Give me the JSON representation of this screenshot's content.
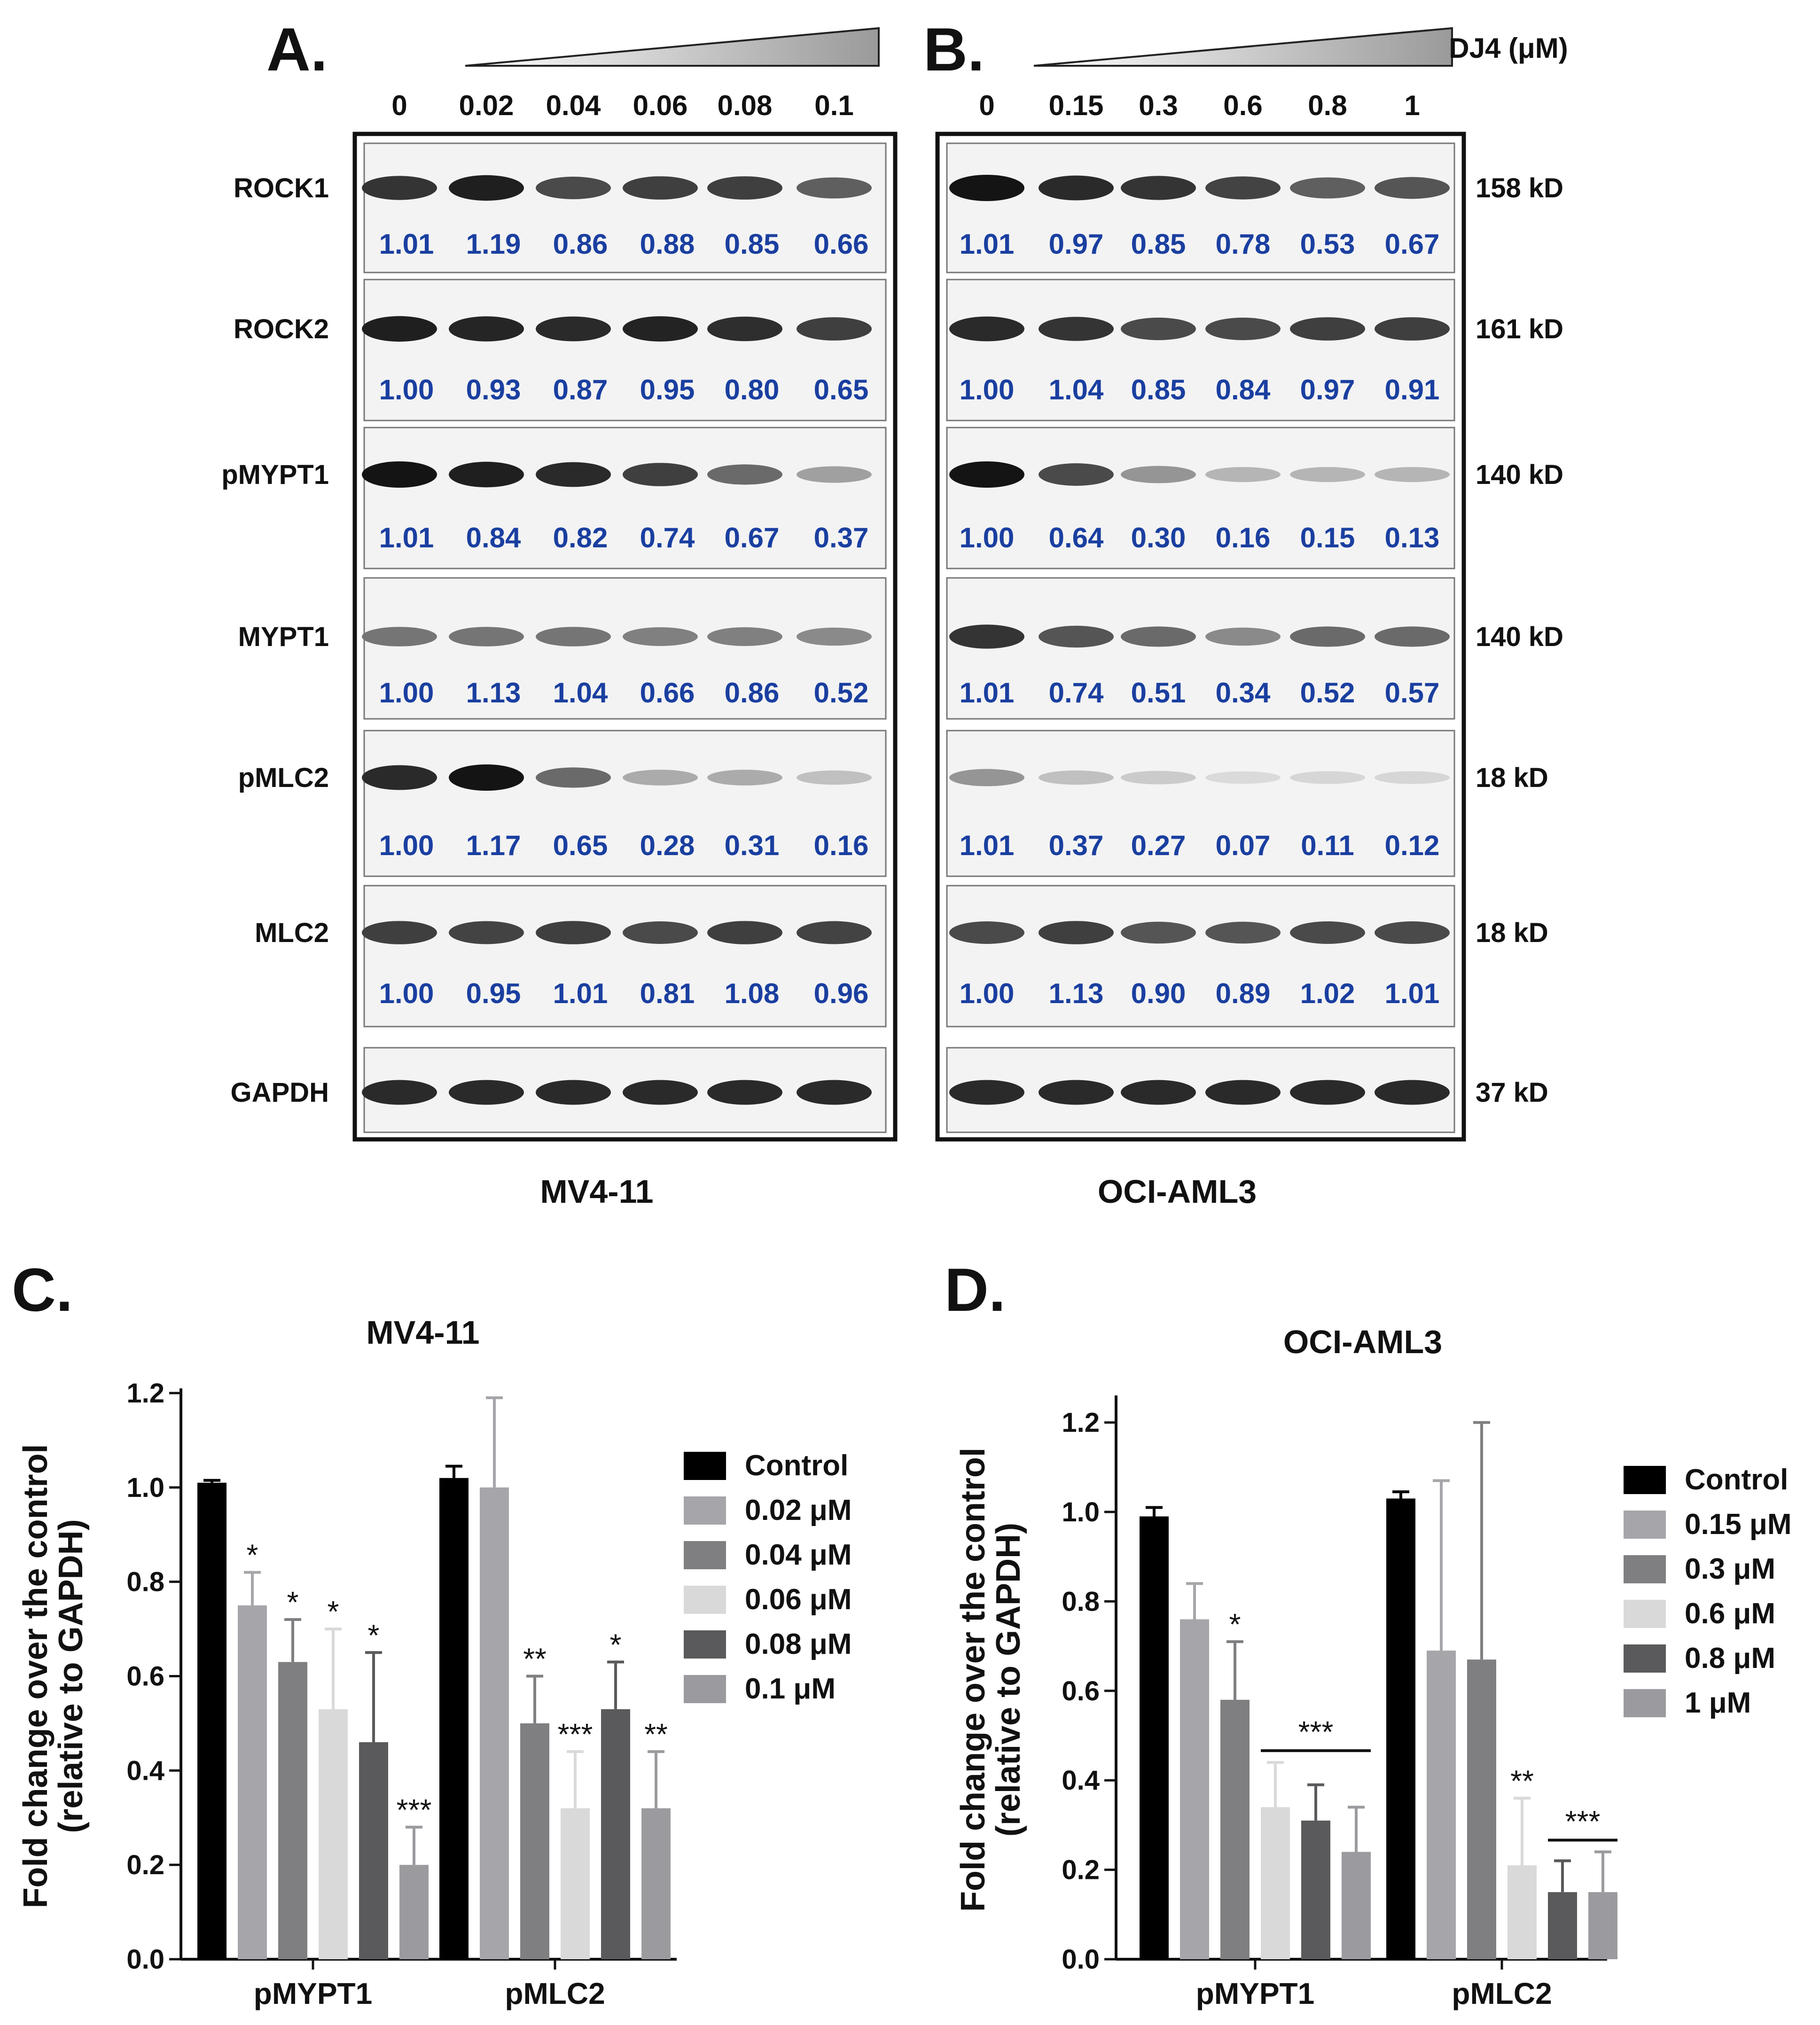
{
  "panel_labels": {
    "a": "A.",
    "b": "B.",
    "c": "C.",
    "d": "D."
  },
  "blot_a": {
    "cell_line": "MV4-11",
    "concentrations": [
      "0",
      "0.02",
      "0.04",
      "0.06",
      "0.08",
      "0.1"
    ],
    "rows": [
      {
        "protein": "ROCK1",
        "values": [
          "1.01",
          "1.19",
          "0.86",
          "0.88",
          "0.85",
          "0.66"
        ]
      },
      {
        "protein": "ROCK2",
        "values": [
          "1.00",
          "0.93",
          "0.87",
          "0.95",
          "0.80",
          "0.65"
        ]
      },
      {
        "protein": "pMYPT1",
        "values": [
          "1.01",
          "0.84",
          "0.82",
          "0.74",
          "0.67",
          "0.37"
        ]
      },
      {
        "protein": "MYPT1",
        "values": [
          "1.00",
          "1.13",
          "1.04",
          "0.66",
          "0.86",
          "0.52"
        ]
      },
      {
        "protein": "pMLC2",
        "values": [
          "1.00",
          "1.17",
          "0.65",
          "0.28",
          "0.31",
          "0.16"
        ]
      },
      {
        "protein": "MLC2",
        "values": [
          "1.00",
          "0.95",
          "1.01",
          "0.81",
          "1.08",
          "0.96"
        ]
      },
      {
        "protein": "GAPDH",
        "values": []
      }
    ]
  },
  "blot_b": {
    "cell_line": "OCI-AML3",
    "dose_label": "DJ4 (μM)",
    "concentrations": [
      "0",
      "0.15",
      "0.3",
      "0.6",
      "0.8",
      "1"
    ],
    "rows": [
      {
        "weight": "158 kD",
        "values": [
          "1.01",
          "0.97",
          "0.85",
          "0.78",
          "0.53",
          "0.67"
        ]
      },
      {
        "weight": "161 kD",
        "values": [
          "1.00",
          "1.04",
          "0.85",
          "0.84",
          "0.97",
          "0.91"
        ]
      },
      {
        "weight": "140 kD",
        "values": [
          "1.00",
          "0.64",
          "0.30",
          "0.16",
          "0.15",
          "0.13"
        ]
      },
      {
        "weight": "140 kD",
        "values": [
          "1.01",
          "0.74",
          "0.51",
          "0.34",
          "0.52",
          "0.57"
        ]
      },
      {
        "weight": "18 kD",
        "values": [
          "1.01",
          "0.37",
          "0.27",
          "0.07",
          "0.11",
          "0.12"
        ]
      },
      {
        "weight": "18 kD",
        "values": [
          "1.00",
          "1.13",
          "0.90",
          "0.89",
          "1.02",
          "1.01"
        ]
      },
      {
        "weight": "37 kD",
        "values": []
      }
    ]
  },
  "colors": {
    "quant_text": "#1a3fa0",
    "series": [
      "#000000",
      "#a6a6aa",
      "#7f7f82",
      "#d9d9d9",
      "#5a5a5d",
      "#9b9b9f"
    ]
  },
  "chart_data": [
    {
      "type": "bar",
      "title": "MV4-11",
      "ylabel": "Fold change over the control (relative to GAPDH)",
      "ylabel_lines": [
        "Fold change over the control",
        "(relative to GAPDH)"
      ],
      "xlabel": "",
      "ylim": [
        0,
        1.2
      ],
      "yticks": [
        "0.0",
        "0.2",
        "0.4",
        "0.6",
        "0.8",
        "1.0",
        "1.2"
      ],
      "categories": [
        "pMYPT1",
        "pMLC2"
      ],
      "legend_position": "right",
      "series": [
        {
          "name": "Control",
          "values": [
            1.01,
            1.02
          ],
          "errors": [
            0.005,
            0.025
          ],
          "sig": [
            "",
            ""
          ]
        },
        {
          "name": "0.02 μM",
          "values": [
            0.75,
            1.0
          ],
          "errors": [
            0.07,
            0.19
          ],
          "sig": [
            "*",
            ""
          ]
        },
        {
          "name": "0.04 μM",
          "values": [
            0.63,
            0.5
          ],
          "errors": [
            0.09,
            0.1
          ],
          "sig": [
            "*",
            "**"
          ]
        },
        {
          "name": "0.06 μM",
          "values": [
            0.53,
            0.32
          ],
          "errors": [
            0.17,
            0.12
          ],
          "sig": [
            "*",
            "***"
          ]
        },
        {
          "name": "0.08 μM",
          "values": [
            0.46,
            0.53
          ],
          "errors": [
            0.19,
            0.1
          ],
          "sig": [
            "*",
            "*"
          ]
        },
        {
          "name": "0.1 μM",
          "values": [
            0.2,
            0.32
          ],
          "errors": [
            0.08,
            0.12
          ],
          "sig": [
            "***",
            "**"
          ]
        }
      ]
    },
    {
      "type": "bar",
      "title": "OCI-AML3",
      "ylabel": "Fold change over the control (relative to GAPDH)",
      "ylabel_lines": [
        "Fold change over the control",
        "(relative to GAPDH)"
      ],
      "xlabel": "",
      "ylim": [
        0,
        1.25
      ],
      "yticks": [
        "0.0",
        "0.2",
        "0.4",
        "0.6",
        "0.8",
        "1.0",
        "1.2"
      ],
      "categories": [
        "pMYPT1",
        "pMLC2"
      ],
      "legend_position": "right",
      "series": [
        {
          "name": "Control",
          "values": [
            0.99,
            1.03
          ],
          "errors": [
            0.02,
            0.015
          ],
          "sig": [
            "",
            ""
          ]
        },
        {
          "name": "0.15 μM",
          "values": [
            0.76,
            0.69
          ],
          "errors": [
            0.08,
            0.38
          ],
          "sig": [
            "",
            ""
          ]
        },
        {
          "name": "0.3 μM",
          "values": [
            0.58,
            0.67
          ],
          "errors": [
            0.13,
            0.53
          ],
          "sig": [
            "*",
            ""
          ]
        },
        {
          "name": "0.6 μM",
          "values": [
            0.34,
            0.21
          ],
          "errors": [
            0.1,
            0.15
          ],
          "sig": [
            "",
            "**"
          ]
        },
        {
          "name": "0.8 μM",
          "values": [
            0.31,
            0.15
          ],
          "errors": [
            0.08,
            0.07
          ],
          "sig": [
            "",
            ""
          ]
        },
        {
          "name": "1 μM",
          "values": [
            0.24,
            0.15
          ],
          "errors": [
            0.1,
            0.09
          ],
          "sig": [
            "",
            ""
          ]
        }
      ],
      "group_sig": [
        {
          "category": 0,
          "from_series": 3,
          "to_series": 5,
          "label": "***"
        },
        {
          "category": 1,
          "from_series": 4,
          "to_series": 5,
          "label": "***"
        }
      ]
    }
  ]
}
